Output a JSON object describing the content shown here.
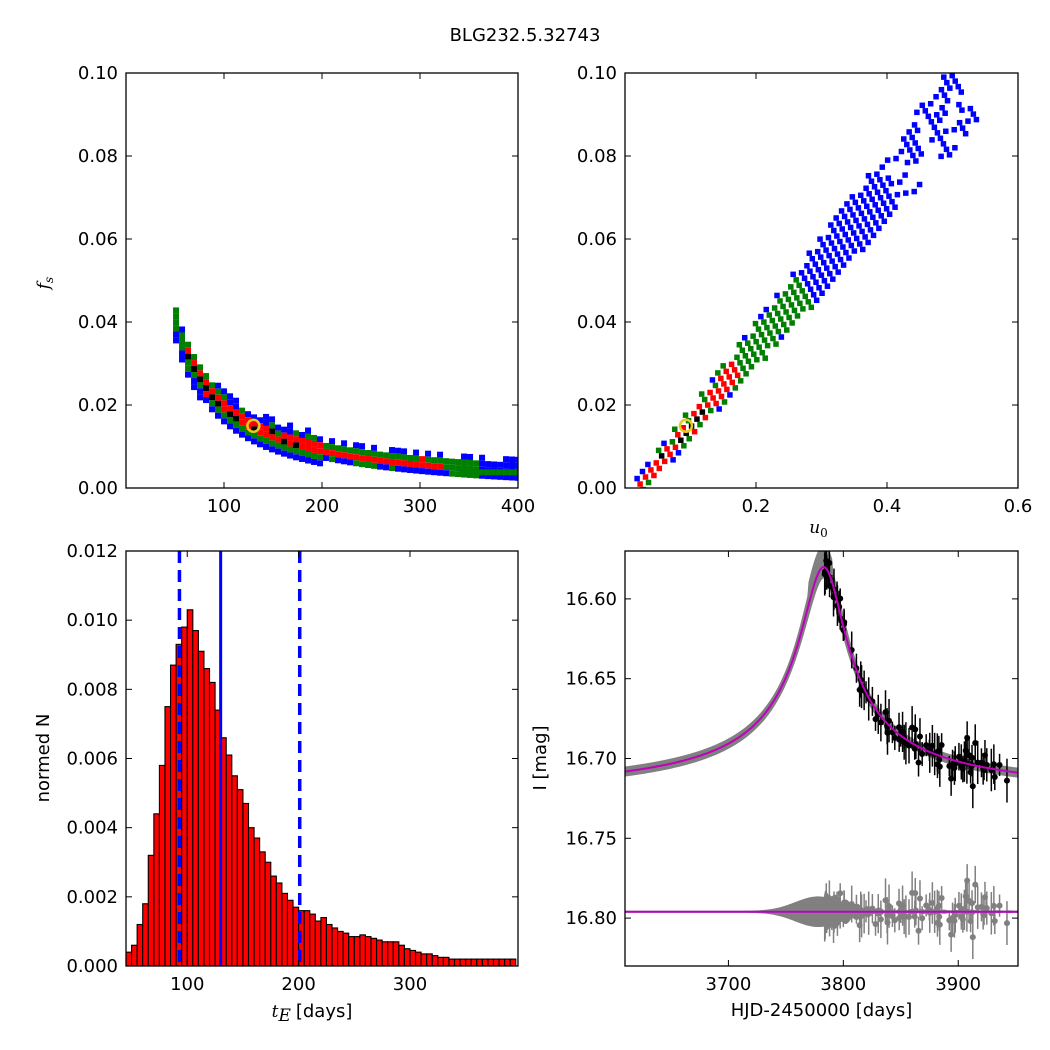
{
  "figure_title": "BLG232.5.32743",
  "colors": {
    "blue": "#0000ff",
    "green": "#007f00",
    "red": "#ff0000",
    "black": "#000000",
    "gray": "#808080",
    "magenta": "#bf00bf",
    "marker": "#e8c91e"
  },
  "chart_data": [
    {
      "id": "fs-vs-tE",
      "type": "heatmap",
      "xlabel": "",
      "ylabel": "f_s",
      "xlim": [
        0,
        400
      ],
      "ylim": [
        0,
        0.1
      ],
      "xticks": [
        100,
        200,
        300,
        400
      ],
      "xtick_labels": [
        "100",
        "200",
        "300",
        "400"
      ],
      "yticks": [
        0,
        0.02,
        0.04,
        0.06,
        0.08,
        0.1
      ],
      "ytick_labels": [
        "0.00",
        "0.02",
        "0.04",
        "0.06",
        "0.08",
        "0.10"
      ],
      "curve": {
        "relation": "fs = k / tE",
        "k": 1.95
      },
      "best_fit": {
        "x": 130,
        "y": 0.015
      }
    },
    {
      "id": "fs-vs-u0",
      "type": "heatmap",
      "xlabel": "u_0",
      "ylabel": "",
      "xlim": [
        0,
        0.6
      ],
      "ylim": [
        0,
        0.1
      ],
      "xticks": [
        0.2,
        0.4,
        0.6
      ],
      "xtick_labels": [
        "0.2",
        "0.4",
        "0.6"
      ],
      "yticks": [
        0,
        0.02,
        0.04,
        0.06,
        0.08,
        0.1
      ],
      "ytick_labels": [
        "0.00",
        "0.02",
        "0.04",
        "0.06",
        "0.08",
        "0.10"
      ],
      "best_fit": {
        "x": 0.093,
        "y": 0.015
      }
    },
    {
      "id": "tE-histogram",
      "type": "bar",
      "xlabel_symbol": "t_E",
      "xlabel_unit": "[days]",
      "ylabel": "normed N",
      "xlim": [
        45,
        397
      ],
      "ylim": [
        0,
        0.012
      ],
      "bin_width": 5,
      "bin_start": 45,
      "values": [
        0.0004,
        0.0006,
        0.0012,
        0.0018,
        0.0032,
        0.0044,
        0.0058,
        0.0075,
        0.0087,
        0.0093,
        0.0098,
        0.0103,
        0.0097,
        0.0091,
        0.0086,
        0.0082,
        0.0074,
        0.0066,
        0.0061,
        0.0055,
        0.0051,
        0.0047,
        0.004,
        0.0037,
        0.0033,
        0.003,
        0.0026,
        0.0024,
        0.0021,
        0.0019,
        0.0017,
        0.0016,
        0.0016,
        0.0015,
        0.0013,
        0.0014,
        0.0012,
        0.0011,
        0.001,
        0.00095,
        0.00085,
        0.00085,
        0.0009,
        0.00085,
        0.0008,
        0.00075,
        0.0007,
        0.0007,
        0.0007,
        0.0006,
        0.0005,
        0.00045,
        0.0004,
        0.00035,
        0.00035,
        0.0003,
        0.00025,
        0.00025,
        0.0002,
        0.0002,
        0.0002,
        0.0002,
        0.0002,
        0.0002,
        0.0002,
        0.0002,
        0.0002,
        0.0002,
        0.0002,
        0.0002
      ],
      "median": 130,
      "interval": [
        93,
        201
      ],
      "xticks": [
        100,
        200,
        300
      ],
      "xtick_labels": [
        "100",
        "200",
        "300"
      ],
      "yticks": [
        0,
        0.002,
        0.004,
        0.006,
        0.008,
        0.01,
        0.012
      ],
      "ytick_labels": [
        "0.000",
        "0.002",
        "0.004",
        "0.006",
        "0.008",
        "0.010",
        "0.012"
      ]
    },
    {
      "id": "light-curve",
      "type": "scatter",
      "xlabel": "HJD-2450000 [days]",
      "ylabel": "I [mag]",
      "xlim": [
        3610,
        3952
      ],
      "ylim": [
        16.83,
        16.57
      ],
      "xticks": [
        3700,
        3800,
        3900
      ],
      "xtick_labels": [
        "3700",
        "3800",
        "3900"
      ],
      "yticks": [
        16.6,
        16.65,
        16.7,
        16.75,
        16.8
      ],
      "ytick_labels": [
        "16.60",
        "16.65",
        "16.70",
        "16.75",
        "16.80"
      ],
      "model": {
        "t0": 3783,
        "baseline": 16.725,
        "peak": 16.58,
        "rise_tau": 30,
        "decay_tau": 28
      },
      "residual_offset": 16.796
    }
  ]
}
